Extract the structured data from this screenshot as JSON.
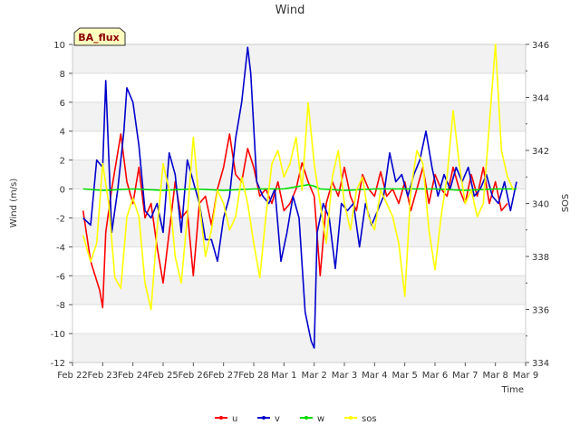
{
  "chart_data": {
    "type": "line",
    "title": "Wind",
    "badge": "BA_flux",
    "xlabel": "Time",
    "ylabel": "Wind (m/s)",
    "y2label": "SOS",
    "x_ticks": [
      "Feb 22",
      "Feb 23",
      "Feb 24",
      "Feb 25",
      "Feb 26",
      "Feb 27",
      "Feb 28",
      "Mar 1",
      "Mar 2",
      "Mar 3",
      "Mar 4",
      "Mar 5",
      "Mar 6",
      "Mar 7",
      "Mar 8",
      "Mar 9"
    ],
    "xlim_days": [
      0,
      15
    ],
    "ylim": [
      -12,
      10
    ],
    "y_ticks": [
      -12,
      -10,
      -8,
      -6,
      -4,
      -2,
      0,
      2,
      4,
      6,
      8,
      10
    ],
    "y2lim": [
      334,
      346
    ],
    "y2_ticks": [
      334,
      336,
      338,
      340,
      342,
      344,
      346
    ],
    "series": [
      {
        "name": "u",
        "color": "#ff0000",
        "axis": "left",
        "x": [
          0.35,
          0.6,
          0.9,
          1.0,
          1.1,
          1.3,
          1.6,
          1.8,
          2.0,
          2.2,
          2.4,
          2.6,
          2.8,
          3.0,
          3.2,
          3.4,
          3.6,
          3.8,
          4.0,
          4.2,
          4.4,
          4.6,
          4.8,
          5.0,
          5.2,
          5.4,
          5.6,
          5.8,
          6.0,
          6.2,
          6.4,
          6.6,
          6.8,
          7.0,
          7.2,
          7.4,
          7.6,
          7.8,
          8.0,
          8.2,
          8.4,
          8.6,
          8.8,
          9.0,
          9.2,
          9.4,
          9.6,
          9.8,
          10.0,
          10.2,
          10.4,
          10.6,
          10.8,
          11.0,
          11.2,
          11.4,
          11.6,
          11.8,
          12.0,
          12.2,
          12.4,
          12.6,
          12.8,
          13.0,
          13.2,
          13.4,
          13.6,
          13.8,
          14.0,
          14.2,
          14.4
        ],
        "y": [
          -1.5,
          -5.0,
          -7.0,
          -8.2,
          -3.0,
          0.0,
          3.8,
          0.5,
          -1.0,
          1.5,
          -2.0,
          -1.0,
          -4.0,
          -6.5,
          -3.0,
          0.5,
          -2.0,
          -1.5,
          -6.0,
          -1.0,
          -0.5,
          -2.5,
          0.0,
          1.5,
          3.8,
          1.0,
          0.5,
          2.8,
          1.5,
          -0.5,
          0.0,
          -1.0,
          0.5,
          -1.5,
          -1.0,
          0.0,
          1.8,
          0.5,
          -0.5,
          -6.0,
          -1.0,
          0.5,
          -0.5,
          1.5,
          -0.5,
          -1.5,
          1.0,
          0.0,
          -0.5,
          1.2,
          -0.5,
          0.0,
          -1.0,
          0.5,
          -1.5,
          0.0,
          1.5,
          -1.0,
          1.0,
          0.0,
          -0.5,
          1.5,
          0.0,
          -1.0,
          1.0,
          -0.5,
          1.5,
          -1.0,
          0.5,
          -1.5,
          -1.0
        ]
      },
      {
        "name": "v",
        "color": "#0000cc",
        "axis": "left",
        "x": [
          0.35,
          0.6,
          0.8,
          1.0,
          1.1,
          1.3,
          1.5,
          1.7,
          1.8,
          2.0,
          2.2,
          2.4,
          2.6,
          2.8,
          3.0,
          3.2,
          3.4,
          3.6,
          3.8,
          4.0,
          4.2,
          4.4,
          4.6,
          4.8,
          5.0,
          5.2,
          5.4,
          5.6,
          5.8,
          5.9,
          6.1,
          6.3,
          6.5,
          6.7,
          6.9,
          7.1,
          7.3,
          7.5,
          7.7,
          7.9,
          8.0,
          8.1,
          8.3,
          8.5,
          8.7,
          8.9,
          9.1,
          9.3,
          9.5,
          9.7,
          9.9,
          10.1,
          10.3,
          10.5,
          10.7,
          10.9,
          11.1,
          11.3,
          11.5,
          11.7,
          11.9,
          12.1,
          12.3,
          12.5,
          12.7,
          12.9,
          13.1,
          13.3,
          13.5,
          13.7,
          13.9,
          14.1,
          14.3,
          14.5,
          14.7
        ],
        "y": [
          -2.0,
          -2.5,
          2.0,
          1.5,
          7.5,
          -3.0,
          0.0,
          4.0,
          7.0,
          6.0,
          3.0,
          -1.5,
          -2.0,
          -1.0,
          -3.0,
          2.5,
          1.0,
          -3.0,
          2.0,
          0.5,
          -1.0,
          -3.5,
          -3.5,
          -5.0,
          -2.0,
          -0.5,
          3.5,
          6.0,
          9.8,
          8.0,
          0.5,
          -0.5,
          -1.0,
          0.0,
          -5.0,
          -3.0,
          -0.5,
          -2.0,
          -8.5,
          -10.5,
          -11.0,
          -3.0,
          -1.0,
          -2.0,
          -5.5,
          -1.0,
          -1.5,
          -1.0,
          -4.0,
          -1.0,
          -2.5,
          -1.5,
          -0.5,
          2.5,
          0.5,
          1.0,
          -0.5,
          1.0,
          2.0,
          4.0,
          1.5,
          -0.5,
          1.0,
          0.0,
          1.5,
          0.5,
          1.5,
          -0.5,
          0.0,
          1.0,
          -0.5,
          -1.0,
          0.5,
          -1.5,
          0.5
        ]
      },
      {
        "name": "w",
        "color": "#00dd00",
        "axis": "left",
        "x": [
          0.35,
          1.0,
          2.0,
          3.0,
          4.0,
          5.0,
          6.0,
          7.0,
          7.8,
          8.0,
          8.2,
          9.0,
          10.0,
          11.0,
          12.0,
          13.0,
          14.0,
          14.7
        ],
        "y": [
          0.0,
          -0.1,
          0.0,
          -0.1,
          0.0,
          -0.1,
          0.0,
          0.0,
          0.3,
          0.2,
          0.0,
          -0.1,
          0.0,
          0.0,
          0.0,
          -0.1,
          0.0,
          0.0
        ]
      },
      {
        "name": "sos",
        "color": "#ffff00",
        "axis": "right",
        "x": [
          0.35,
          0.6,
          0.8,
          1.0,
          1.2,
          1.4,
          1.6,
          1.8,
          2.0,
          2.2,
          2.4,
          2.6,
          2.8,
          3.0,
          3.2,
          3.4,
          3.6,
          3.8,
          4.0,
          4.2,
          4.4,
          4.6,
          4.8,
          5.0,
          5.2,
          5.4,
          5.6,
          5.8,
          6.0,
          6.2,
          6.4,
          6.6,
          6.8,
          7.0,
          7.2,
          7.4,
          7.6,
          7.8,
          8.0,
          8.2,
          8.4,
          8.6,
          8.8,
          9.0,
          9.2,
          9.4,
          9.6,
          9.8,
          10.0,
          10.2,
          10.4,
          10.6,
          10.8,
          11.0,
          11.2,
          11.4,
          11.6,
          11.8,
          12.0,
          12.2,
          12.4,
          12.6,
          12.8,
          13.0,
          13.2,
          13.4,
          13.6,
          13.8,
          14.0,
          14.2,
          14.4,
          14.6
        ],
        "y": [
          338.8,
          337.8,
          338.5,
          341.5,
          340.0,
          337.2,
          336.8,
          339.5,
          340.2,
          339.5,
          337.0,
          336.0,
          339.0,
          341.5,
          340.5,
          338.0,
          337.0,
          339.5,
          342.5,
          340.0,
          338.0,
          339.0,
          340.5,
          340.0,
          339.0,
          339.5,
          341.0,
          340.0,
          338.5,
          337.2,
          339.5,
          341.5,
          342.0,
          341.0,
          341.5,
          342.5,
          340.5,
          343.8,
          341.5,
          340.0,
          338.5,
          341.0,
          342.0,
          340.0,
          339.0,
          340.5,
          341.0,
          339.5,
          339.0,
          340.5,
          340.0,
          339.5,
          338.5,
          336.5,
          340.5,
          342.0,
          341.5,
          339.0,
          337.5,
          339.5,
          341.0,
          343.5,
          341.5,
          340.0,
          340.5,
          339.5,
          340.0,
          343.0,
          346.0,
          342.0,
          341.0,
          340.5
        ]
      }
    ]
  }
}
